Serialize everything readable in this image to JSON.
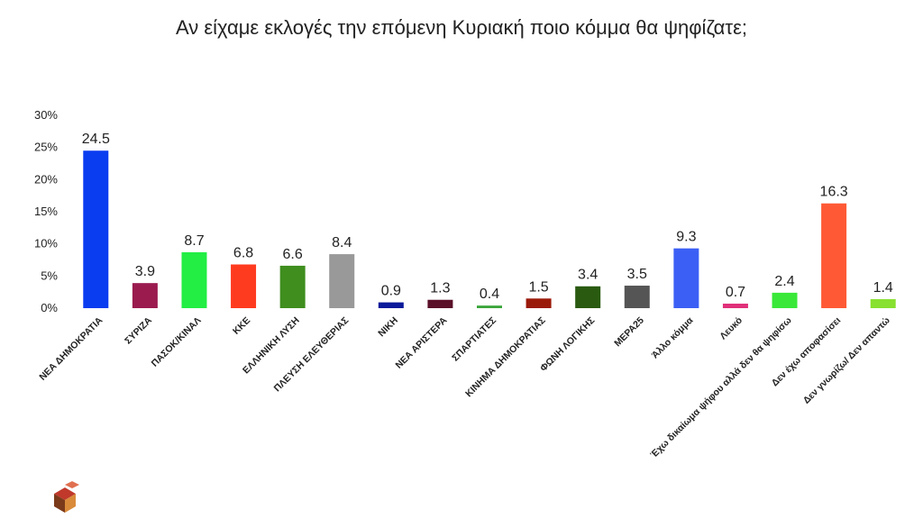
{
  "chart_data": {
    "type": "bar",
    "title": "Αν είχαμε εκλογές την επόμενη Κυριακή ποιο κόμμα θα ψηφίζατε;",
    "categories": [
      "ΝΕΑ ΔΗΜΟΚΡΑΤΙΑ",
      "ΣΥΡΙΖΑ",
      "ΠΑΣΟΚ/ΚΙΝΑΛ",
      "ΚΚΕ",
      "ΕΛΛΗΝΙΚΗ ΛΥΣΗ",
      "ΠΛΕΥΣΗ ΕΛΕΥΘΕΡΙΑΣ",
      "ΝΙΚΗ",
      "ΝΕΑ ΑΡΙΣΤΕΡΑ",
      "ΣΠΑΡΤΙΑΤΕΣ",
      "ΚΙΝΗΜΑ ΔΗΜΟΚΡΑΤΙΑΣ",
      "ΦΩΝΗ ΛΟΓΙΚΗΣ",
      "ΜΕΡΑ25",
      "Άλλο κόμμα",
      "Λευκό",
      "Έχω δικαίωμα ψήφου αλλά δεν θα ψηφίσω",
      "Δεν έχω αποφασίσει",
      "Δεν γνωρίζω/ Δεν απαντώ"
    ],
    "values": [
      24.5,
      3.9,
      8.7,
      6.8,
      6.6,
      8.4,
      0.9,
      1.3,
      0.4,
      1.5,
      3.4,
      3.5,
      9.3,
      0.7,
      2.4,
      16.3,
      1.4
    ],
    "colors": [
      "#0a3cf0",
      "#9b1b4f",
      "#22ee44",
      "#ff3b1f",
      "#3f8e1e",
      "#999999",
      "#0a1a9a",
      "#5a1028",
      "#3aa53a",
      "#9a1a0a",
      "#2a5a10",
      "#555555",
      "#3b5ff5",
      "#e0307a",
      "#3ae83a",
      "#ff5a35",
      "#88e030"
    ],
    "ylim": [
      0,
      30
    ],
    "yticks": [
      {
        "value": 0,
        "label": "0%"
      },
      {
        "value": 5,
        "label": "5%"
      },
      {
        "value": 10,
        "label": "10%"
      },
      {
        "value": 15,
        "label": "15%"
      },
      {
        "value": 20,
        "label": "20%"
      },
      {
        "value": 25,
        "label": "25%"
      },
      {
        "value": 30,
        "label": "30%"
      }
    ],
    "grid": false
  }
}
